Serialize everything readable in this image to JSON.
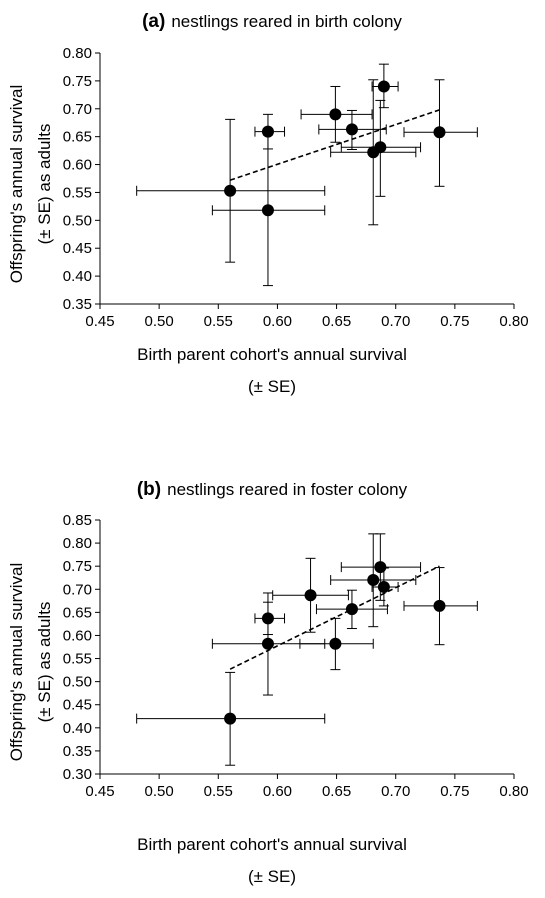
{
  "chart_data": [
    {
      "type": "scatter",
      "title_bold": "(a)",
      "title": "nestlings reared in birth colony",
      "xlabel_line1": "Birth parent cohort's annual survival",
      "xlabel_line2": "(± SE)",
      "ylabel_line1": "Offspring's annual survival",
      "ylabel_line2": "(± SE) as adults",
      "xlim": [
        0.45,
        0.8
      ],
      "ylim": [
        0.35,
        0.8
      ],
      "xticks": [
        "0.45",
        "0.50",
        "0.55",
        "0.60",
        "0.65",
        "0.70",
        "0.75",
        "0.80"
      ],
      "yticks": [
        "0.35",
        "0.40",
        "0.45",
        "0.50",
        "0.55",
        "0.60",
        "0.65",
        "0.70",
        "0.75",
        "0.80"
      ],
      "points": [
        {
          "x": 0.56,
          "y": 0.553,
          "xlo": 0.481,
          "xhi": 0.64,
          "ylo": 0.425,
          "yhi": 0.681
        },
        {
          "x": 0.592,
          "y": 0.518,
          "xlo": 0.545,
          "xhi": 0.64,
          "ylo": 0.383,
          "yhi": 0.653
        },
        {
          "x": 0.592,
          "y": 0.659,
          "xlo": 0.581,
          "xhi": 0.606,
          "ylo": 0.628,
          "yhi": 0.69
        },
        {
          "x": 0.649,
          "y": 0.69,
          "xlo": 0.62,
          "xhi": 0.68,
          "ylo": 0.64,
          "yhi": 0.74
        },
        {
          "x": 0.663,
          "y": 0.663,
          "xlo": 0.635,
          "xhi": 0.692,
          "ylo": 0.627,
          "yhi": 0.697
        },
        {
          "x": 0.681,
          "y": 0.622,
          "xlo": 0.645,
          "xhi": 0.717,
          "ylo": 0.492,
          "yhi": 0.752
        },
        {
          "x": 0.687,
          "y": 0.631,
          "xlo": 0.654,
          "xhi": 0.721,
          "ylo": 0.543,
          "yhi": 0.715
        },
        {
          "x": 0.69,
          "y": 0.74,
          "xlo": 0.68,
          "xhi": 0.702,
          "ylo": 0.702,
          "yhi": 0.78
        },
        {
          "x": 0.737,
          "y": 0.658,
          "xlo": 0.707,
          "xhi": 0.769,
          "ylo": 0.561,
          "yhi": 0.752
        }
      ],
      "trendline": {
        "x": [
          0.56,
          0.737
        ],
        "y": [
          0.572,
          0.698
        ],
        "style": "dashed"
      }
    },
    {
      "type": "scatter",
      "title_bold": "(b)",
      "title": "nestlings reared in foster colony",
      "xlabel_line1": "Birth parent cohort's annual survival",
      "xlabel_line2": "(± SE)",
      "ylabel_line1": "Offspring's annual survival",
      "ylabel_line2": "(± SE) as adults",
      "xlim": [
        0.45,
        0.8
      ],
      "ylim": [
        0.3,
        0.85
      ],
      "xticks": [
        "0.45",
        "0.50",
        "0.55",
        "0.60",
        "0.65",
        "0.70",
        "0.75",
        "0.80"
      ],
      "yticks": [
        "0.30",
        "0.35",
        "0.40",
        "0.45",
        "0.50",
        "0.55",
        "0.60",
        "0.65",
        "0.70",
        "0.75",
        "0.80",
        "0.85"
      ],
      "points": [
        {
          "x": 0.56,
          "y": 0.42,
          "xlo": 0.481,
          "xhi": 0.64,
          "ylo": 0.319,
          "yhi": 0.52
        },
        {
          "x": 0.592,
          "y": 0.582,
          "xlo": 0.545,
          "xhi": 0.64,
          "ylo": 0.471,
          "yhi": 0.692
        },
        {
          "x": 0.592,
          "y": 0.637,
          "xlo": 0.581,
          "xhi": 0.606,
          "ylo": 0.602,
          "yhi": 0.672
        },
        {
          "x": 0.628,
          "y": 0.687,
          "xlo": 0.596,
          "xhi": 0.66,
          "ylo": 0.607,
          "yhi": 0.767
        },
        {
          "x": 0.649,
          "y": 0.582,
          "xlo": 0.619,
          "xhi": 0.681,
          "ylo": 0.526,
          "yhi": 0.637
        },
        {
          "x": 0.663,
          "y": 0.657,
          "xlo": 0.633,
          "xhi": 0.693,
          "ylo": 0.615,
          "yhi": 0.698
        },
        {
          "x": 0.681,
          "y": 0.72,
          "xlo": 0.645,
          "xhi": 0.717,
          "ylo": 0.619,
          "yhi": 0.82
        },
        {
          "x": 0.687,
          "y": 0.748,
          "xlo": 0.654,
          "xhi": 0.721,
          "ylo": 0.676,
          "yhi": 0.82
        },
        {
          "x": 0.69,
          "y": 0.705,
          "xlo": 0.68,
          "xhi": 0.702,
          "ylo": 0.664,
          "yhi": 0.746
        },
        {
          "x": 0.737,
          "y": 0.664,
          "xlo": 0.707,
          "xhi": 0.769,
          "ylo": 0.58,
          "yhi": 0.747
        }
      ],
      "trendline": {
        "x": [
          0.56,
          0.737
        ],
        "y": [
          0.527,
          0.75
        ],
        "style": "dashed"
      }
    }
  ]
}
